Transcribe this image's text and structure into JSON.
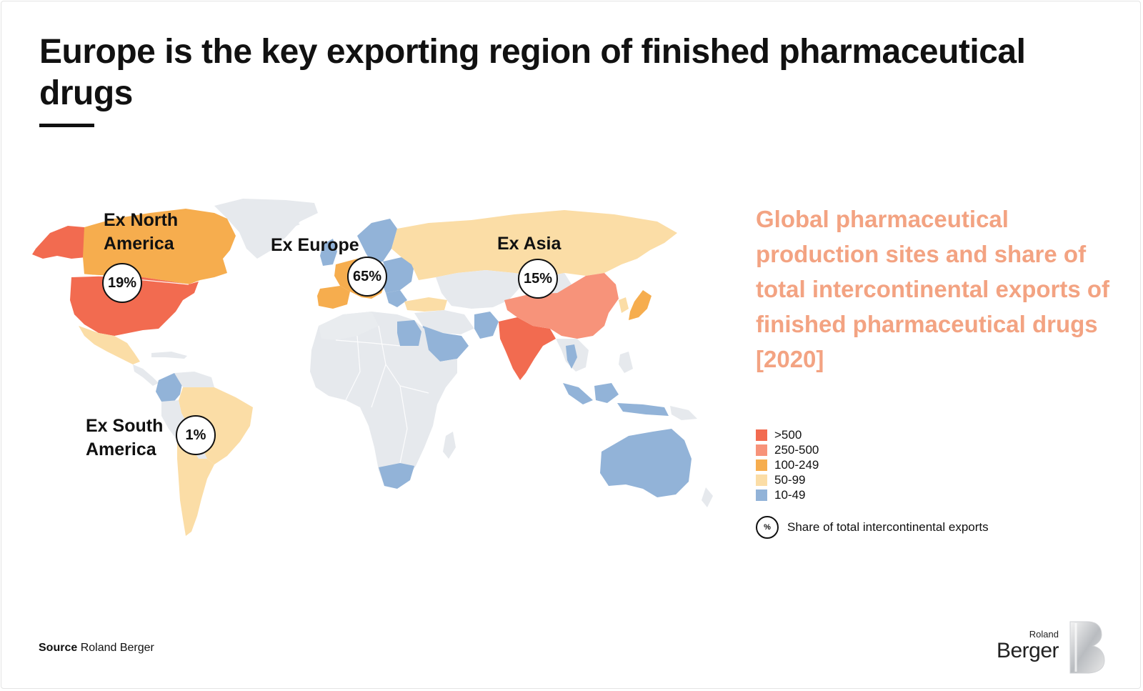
{
  "title": "Europe is the key exporting region of finished pharmaceutical drugs",
  "subtitle": "Global pharmaceutical production sites and share of total intercontinental exports of finished pharmaceutical drugs [2020]",
  "regions": [
    {
      "name_line1": "Ex North",
      "name_line2": "America",
      "share": "19%"
    },
    {
      "name_line1": "Ex Europe",
      "name_line2": "",
      "share": "65%"
    },
    {
      "name_line1": "Ex Asia",
      "name_line2": "",
      "share": "15%"
    },
    {
      "name_line1": "Ex South",
      "name_line2": "America",
      "share": "1%"
    }
  ],
  "legend": {
    "items": [
      {
        "label": ">500",
        "color": "#f26b50"
      },
      {
        "label": "250-500",
        "color": "#f7937a"
      },
      {
        "label": "100-249",
        "color": "#f6ad4e"
      },
      {
        "label": "50-99",
        "color": "#fbdda6"
      },
      {
        "label": "10-49",
        "color": "#92b3d8"
      }
    ],
    "circle_symbol": "%",
    "circle_label": "Share of total intercontinental exports"
  },
  "colors": {
    "no_data": "#e6e9ed",
    "subtitle": "#f3a382"
  },
  "source": {
    "prefix": "Source",
    "text": "Roland Berger"
  },
  "logo": {
    "line1": "Roland",
    "line2": "Berger"
  }
}
